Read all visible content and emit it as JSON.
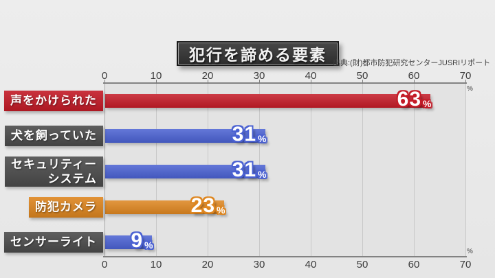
{
  "title": "犯行を諦める要素",
  "source": "出典:(財)都市防犯研究センターJUSRIリポート",
  "axis": {
    "unit": "%"
  },
  "colors": {
    "red": "#c41b27",
    "blue": "#4a61d2",
    "orange": "#de8620",
    "label_dark": "#4c4c4c",
    "background": "#e9e9e9",
    "plot_background": "#e3e3e3",
    "gridline": "#c8c8c8"
  },
  "chart_data": {
    "type": "bar",
    "orientation": "horizontal",
    "title": "犯行を諦める要素",
    "xlabel": "%",
    "xlim": [
      0,
      70
    ],
    "x_ticks": [
      0,
      10,
      20,
      30,
      40,
      50,
      60,
      70
    ],
    "grid": true,
    "unit": "%",
    "categories": [
      "声をかけられた",
      "犬を飼っていた",
      "セキュリティー\nシステム",
      "防犯カメラ",
      "センサーライト"
    ],
    "values": [
      63,
      31,
      31,
      23,
      9
    ],
    "rows": [
      {
        "label": "声をかけられた",
        "value": 63,
        "bar_color": "#c41b27",
        "label_bg": "#c41b27"
      },
      {
        "label": "犬を飼っていた",
        "value": 31,
        "bar_color": "#4a61d2",
        "label_bg": "#4c4c4c"
      },
      {
        "label": "セキュリティー\nシステム",
        "value": 31,
        "bar_color": "#4a61d2",
        "label_bg": "#4c4c4c"
      },
      {
        "label": "防犯カメラ",
        "value": 23,
        "bar_color": "#de8620",
        "label_bg": "#de8620"
      },
      {
        "label": "センサーライト",
        "value": 9,
        "bar_color": "#4a61d2",
        "label_bg": "#4c4c4c"
      }
    ]
  }
}
